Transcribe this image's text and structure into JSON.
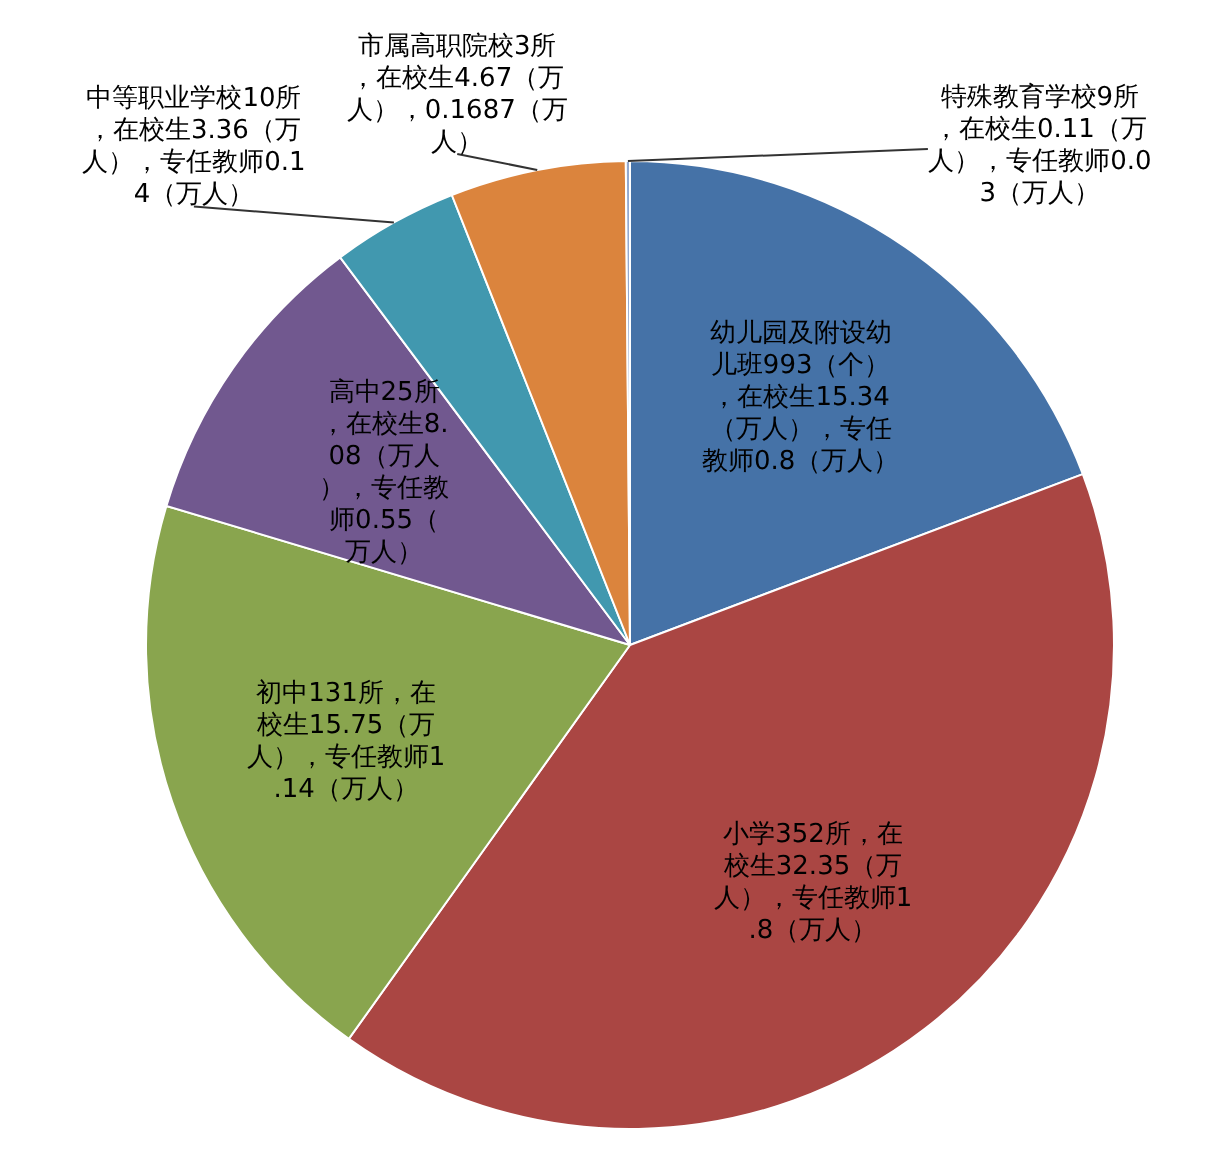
{
  "chart_data": {
    "type": "pie",
    "categories": [
      "幼儿园及附设幼儿班993（个），在校生15.34（万人），专任教师0.8（万人）",
      "小学352所，在校生32.35（万人），专任教师1.8（万人）",
      "初中131所，在校生15.75（万人），专任教师1.14（万人）",
      "高中25所，在校生8.08（万人），专任教师0.55（万人）",
      "中等职业学校10所，在校生3.36（万人），专任教师0.14（万人）",
      "市属高职院校3所，在校生4.67（万人），0.1687（万人）",
      "特殊教育学校9所，在校生0.11（万人），专任教师0.03（万人）"
    ],
    "values": [
      15.34,
      32.35,
      15.75,
      8.08,
      3.36,
      4.67,
      0.11
    ],
    "colors": [
      "#4572a7",
      "#aa4643",
      "#89a54e",
      "#71588f",
      "#4198af",
      "#db843d",
      "#93a9cf"
    ],
    "legend": false
  }
}
